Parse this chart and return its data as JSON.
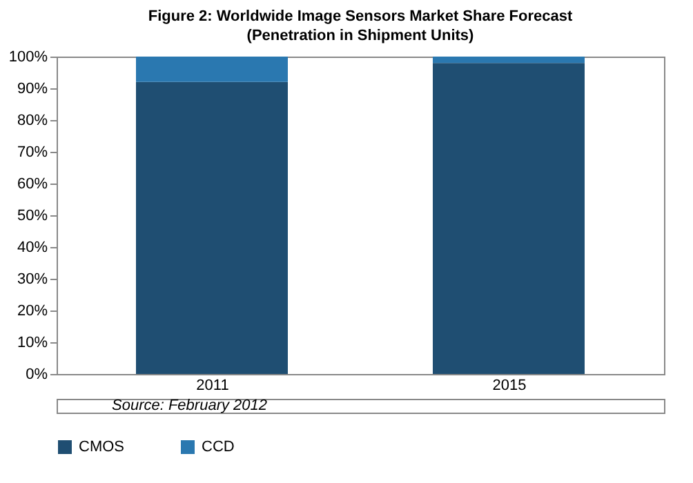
{
  "chart_data": {
    "type": "bar",
    "title": "Figure 2: Worldwide Image Sensors Market Share Forecast",
    "subtitle": "(Penetration in Shipment Units)",
    "categories": [
      "2011",
      "2015"
    ],
    "series": [
      {
        "name": "CMOS",
        "color": "#1f4e72",
        "values": [
          92,
          98
        ]
      },
      {
        "name": "CCD",
        "color": "#2a78b0",
        "values": [
          8,
          2
        ]
      }
    ],
    "stacked": true,
    "ylim": [
      0,
      100
    ],
    "yticks": [
      {
        "value": 0,
        "label": "0%"
      },
      {
        "value": 10,
        "label": "10%"
      },
      {
        "value": 20,
        "label": "20%"
      },
      {
        "value": 30,
        "label": "30%"
      },
      {
        "value": 40,
        "label": "40%"
      },
      {
        "value": 50,
        "label": "50%"
      },
      {
        "value": 60,
        "label": "60%"
      },
      {
        "value": 70,
        "label": "70%"
      },
      {
        "value": 80,
        "label": "80%"
      },
      {
        "value": 90,
        "label": "90%"
      },
      {
        "value": 100,
        "label": "100%"
      }
    ],
    "legend": "bottom",
    "grid": false,
    "annotations": [
      "Source: February 2012"
    ]
  }
}
